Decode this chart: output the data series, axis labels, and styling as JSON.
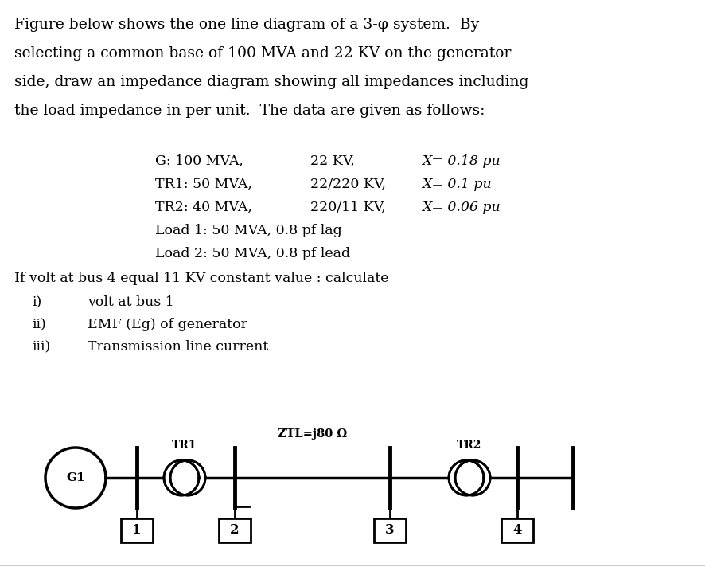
{
  "bg_color": "#ffffff",
  "text_color": "#000000",
  "line_color": "#000000",
  "fig_width": 8.86,
  "fig_height": 7.12,
  "para_lines": [
    "Figure below shows the one line diagram of a 3-φ system.  By",
    "selecting a common base of 100 MVA and 22 KV on the generator",
    "side, draw an impedance diagram showing all impedances including",
    "the load impedance in per unit.  The data are given as follows:"
  ],
  "data_indent": 0.22,
  "data_lines": [
    [
      "G: 100 MVA,",
      "22 KV,",
      "X= 0.18 pu"
    ],
    [
      "TR1: 50 MVA,",
      "22/220 KV,",
      "X= 0.1 pu"
    ],
    [
      "TR2: 40 MVA,",
      "220/11 KV,",
      "X= 0.06 pu"
    ],
    [
      "Load 1: 50 MVA, 0.8 pf lag",
      "",
      ""
    ],
    [
      "Load 2: 50 MVA, 0.8 pf lead",
      "",
      ""
    ]
  ],
  "if_line": "If volt at bus 4 equal 11 KV constant value : calculate",
  "roman_items": [
    [
      "i)",
      "volt at bus 1"
    ],
    [
      "ii)",
      "EMF (Eg) of generator"
    ],
    [
      "iii)",
      "Transmission line current"
    ]
  ],
  "font_size_para": 13.5,
  "font_size_data": 12.5,
  "font_size_diag": 10.5
}
